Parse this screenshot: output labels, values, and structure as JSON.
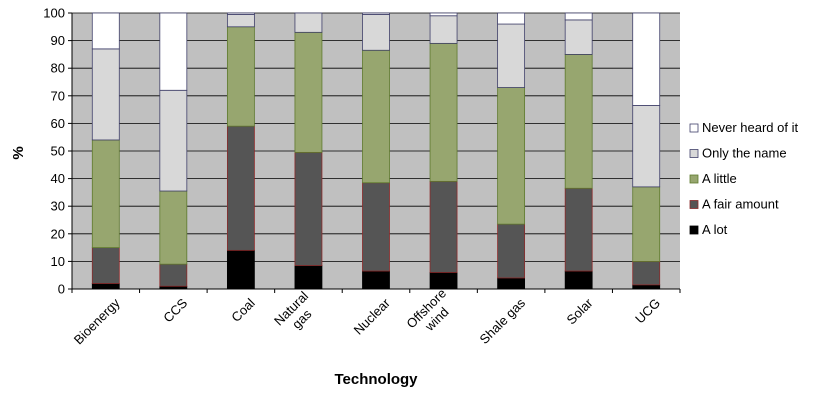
{
  "chart_data": {
    "type": "bar",
    "stacked": true,
    "xlabel": "Technology",
    "ylabel": "%",
    "ylim": [
      0,
      100
    ],
    "yticks": [
      0,
      10,
      20,
      30,
      40,
      50,
      60,
      70,
      80,
      90,
      100
    ],
    "grid": true,
    "legend_position": "right",
    "categories": [
      [
        "Bioenergy"
      ],
      [
        "CCS"
      ],
      [
        "Coal"
      ],
      [
        "Natural",
        "gas"
      ],
      [
        "Nuclear"
      ],
      [
        "Offshore",
        "wind"
      ],
      [
        "Shale gas"
      ],
      [
        "Solar"
      ],
      [
        "UCG"
      ]
    ],
    "series": [
      {
        "name": "A lot",
        "color": "#000000",
        "stroke": "#000000",
        "values": [
          2,
          1,
          14,
          8.5,
          6.5,
          6,
          4,
          6.5,
          1.5
        ]
      },
      {
        "name": "A fair amount",
        "color": "#555555",
        "stroke": "#8b2a2a",
        "values": [
          13,
          8,
          45,
          41,
          32,
          33,
          19.5,
          30,
          8.5
        ]
      },
      {
        "name": "A little",
        "color": "#97a66f",
        "stroke": "#5f7a2e",
        "values": [
          39,
          26.5,
          36,
          43.5,
          48,
          50,
          49.5,
          48.5,
          27
        ]
      },
      {
        "name": "Only the name",
        "color": "#d8d8d8",
        "stroke": "#40406a",
        "values": [
          33,
          36.5,
          4.5,
          7,
          13,
          10,
          23,
          12.5,
          29.5
        ]
      },
      {
        "name": "Never heard of it",
        "color": "#ffffff",
        "stroke": "#40406a",
        "values": [
          13,
          28,
          0.5,
          0,
          0.5,
          1,
          4,
          2.5,
          33.5
        ]
      }
    ]
  }
}
